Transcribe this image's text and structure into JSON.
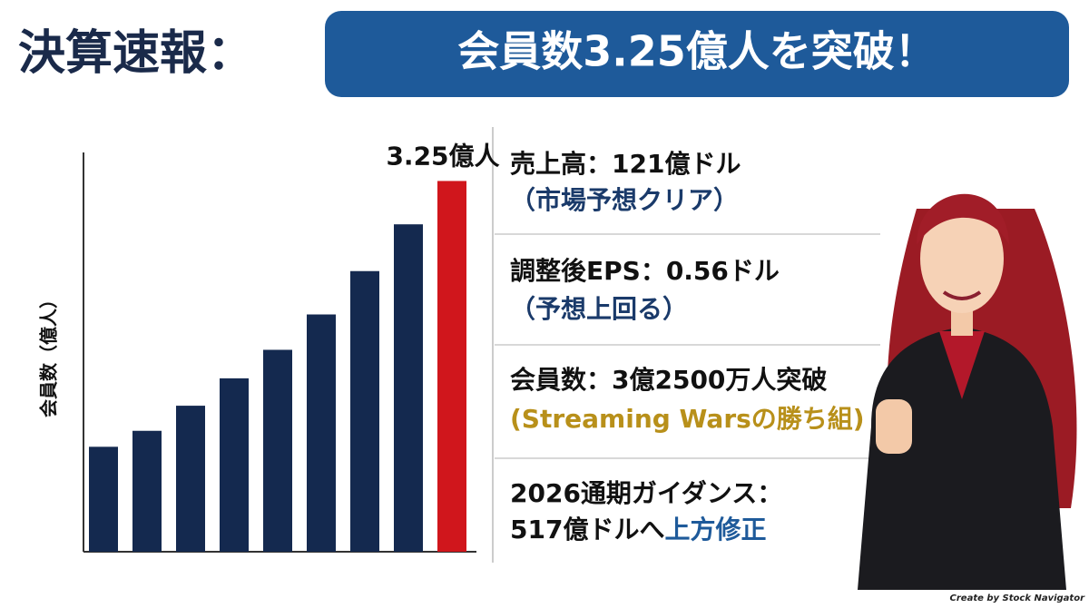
{
  "header": {
    "title": "決算速報：",
    "banner": "会員数3.25億人を突破！"
  },
  "chart_data": {
    "type": "bar",
    "y_label": "会員数（億人）",
    "categories": [
      null,
      null,
      null,
      null,
      null,
      null,
      null,
      null,
      null
    ],
    "values": [
      0.92,
      1.06,
      1.28,
      1.52,
      1.77,
      2.08,
      2.46,
      2.87,
      3.25
    ],
    "value_labels": [
      null,
      null,
      null,
      null,
      null,
      null,
      null,
      null,
      "3.25億人"
    ],
    "colors": [
      "#14294f",
      "#14294f",
      "#14294f",
      "#14294f",
      "#14294f",
      "#14294f",
      "#14294f",
      "#14294f",
      "#d0161c"
    ],
    "ylim": [
      0,
      3.5
    ]
  },
  "points": [
    {
      "line1": "売上高：121億ドル",
      "line2": "（市場予想クリア）"
    },
    {
      "line1": "調整後EPS：0.56ドル",
      "line2": "（予想上回る）"
    },
    {
      "line1": "会員数：3億2500万人突破",
      "line2": "(Streaming Warsの勝ち組)"
    },
    {
      "line1": "2026通期ガイダンス：",
      "line2": "517億ドルへ",
      "line2_highlight": "上方修正"
    }
  ],
  "credit": "Create by Stock Navigator"
}
